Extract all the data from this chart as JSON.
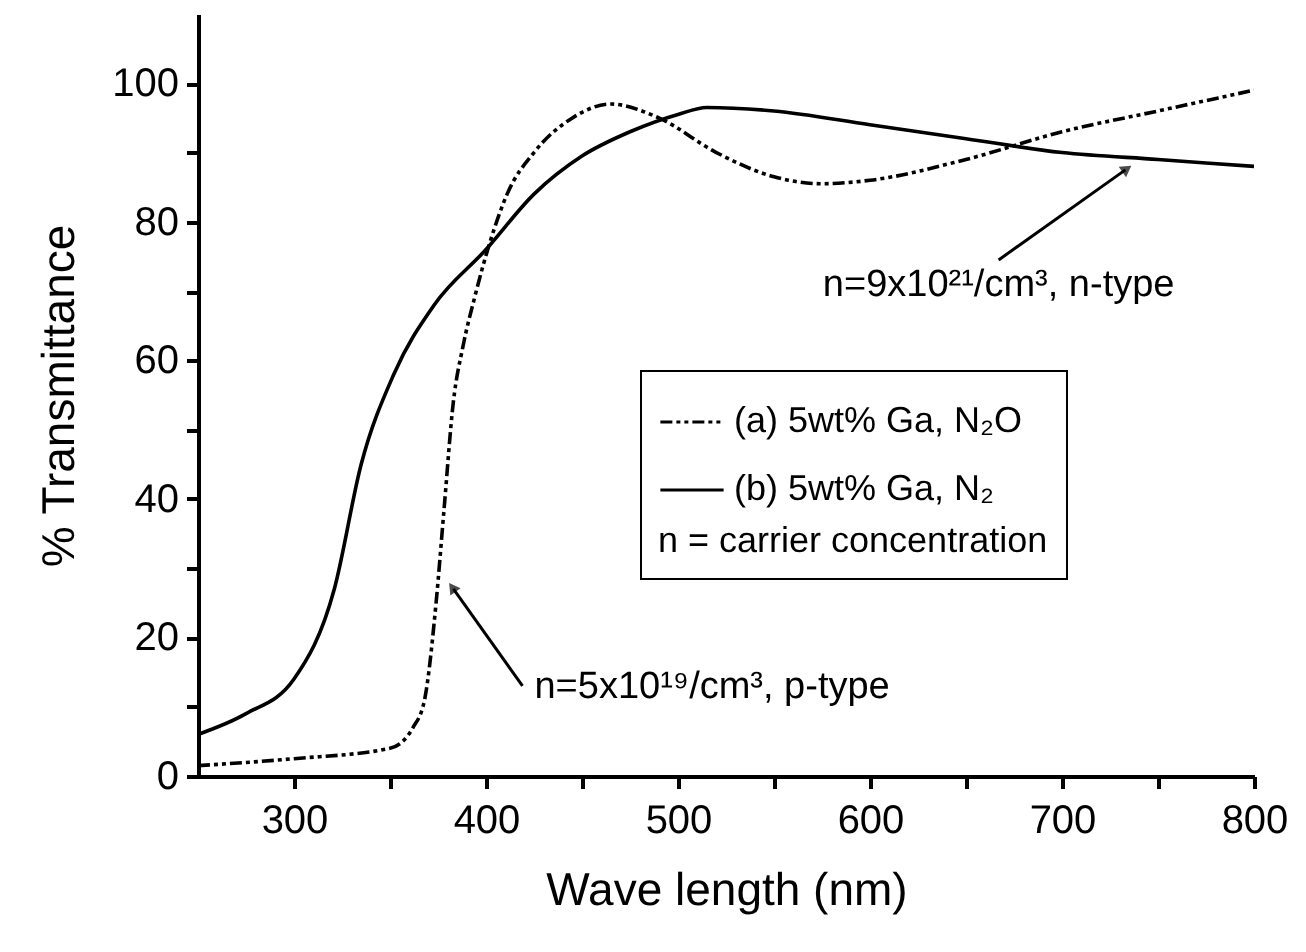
{
  "chart_data": {
    "type": "line",
    "xlabel": "Wave length (nm)",
    "ylabel": "% Transmittance",
    "xlim": [
      250,
      800
    ],
    "ylim": [
      0,
      110
    ],
    "xticks": [
      300,
      {
        "value": 350,
        "label": null
      },
      400,
      {
        "value": 450,
        "label": null
      },
      500,
      {
        "value": 550,
        "label": null
      },
      600,
      {
        "value": 650,
        "label": null
      },
      700,
      {
        "value": 750,
        "label": null
      },
      800
    ],
    "yticks": [
      0,
      {
        "value": 10,
        "label": null
      },
      20,
      {
        "value": 30,
        "label": null
      },
      40,
      {
        "value": 50,
        "label": null
      },
      60,
      {
        "value": 70,
        "label": null
      },
      80,
      {
        "value": 90,
        "label": null
      },
      100
    ],
    "grid": false,
    "legend": "right",
    "legend_title": "n = carrier concentration",
    "series": [
      {
        "name": "(a) 5wt% Ga, N₂O",
        "color": "#000000",
        "line_style": "dashed",
        "x": [
          250,
          300,
          350,
          362,
          368,
          374,
          378,
          383,
          388,
          394,
          402,
          411,
          425,
          445,
          465,
          490,
          520,
          550,
          575,
          600,
          650,
          700,
          750,
          800
        ],
        "values": [
          1.5,
          2.5,
          4,
          7,
          11,
          25,
          38,
          54,
          62,
          69,
          77,
          84,
          90,
          95,
          97,
          95,
          90,
          86.5,
          85.5,
          86,
          89,
          93,
          96,
          99
        ]
      },
      {
        "name": "(b) 5wt% Ga, N₂",
        "color": "#000000",
        "line_style": "solid",
        "x": [
          250,
          275,
          300,
          321,
          335,
          352,
          373,
          400,
          425,
          450,
          475,
          500,
          515,
          550,
          600,
          650,
          700,
          750,
          800
        ],
        "values": [
          6,
          9,
          14,
          27,
          45,
          58,
          68,
          76,
          84,
          89.5,
          93,
          95.5,
          96.5,
          96,
          94,
          92,
          90,
          89,
          88
        ]
      }
    ],
    "annotations": [
      {
        "text": "n=5x10¹⁹/cm³, p-type",
        "x": 383,
        "y": 27
      },
      {
        "text": "n=9x10²¹/cm³, n-type",
        "x": 733,
        "y": 87.5
      }
    ]
  }
}
